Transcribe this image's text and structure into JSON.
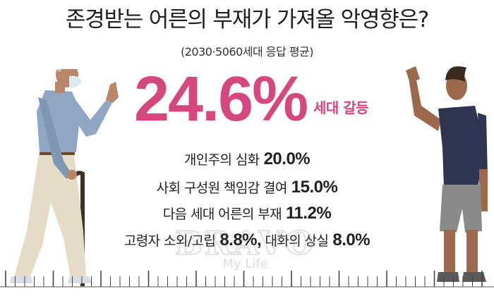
{
  "title": "존경받는 어른의 부재가 가져올 악영향은?",
  "subtitle": "(2030·5060세대 응답 평균)",
  "watermark": {
    "logo": "BRAVO",
    "sub": "My Life"
  },
  "colors": {
    "accent": "#d4487d",
    "text": "#231f20"
  },
  "chart_data": {
    "type": "table",
    "title": "존경받는 어른의 부재가 가져올 악영향은?",
    "subtitle": "(2030·5060세대 응답 평균)",
    "unit": "%",
    "categories": [
      "세대 갈등",
      "개인주의 심화",
      "사회 구성원 책임감 결여",
      "다음 세대 어른의 부재",
      "고령자 소외/고립",
      "대화의 상실"
    ],
    "values": [
      24.6,
      20.0,
      15.0,
      11.2,
      8.8,
      8.0
    ],
    "labels": {
      "hero": {
        "name": "세대 갈등",
        "value": "24.6%"
      },
      "items": [
        {
          "name": "개인주의 심화",
          "value": "20.0%"
        },
        {
          "name": "사회 구성원 책임감 결여",
          "value": "15.0%"
        },
        {
          "name": "다음 세대 어른의 부재",
          "value": "11.2%"
        },
        {
          "name": "고령자 소외/고립",
          "value": "8.8%"
        },
        {
          "name": "대화의 상실",
          "value": "8.0%"
        }
      ]
    }
  }
}
